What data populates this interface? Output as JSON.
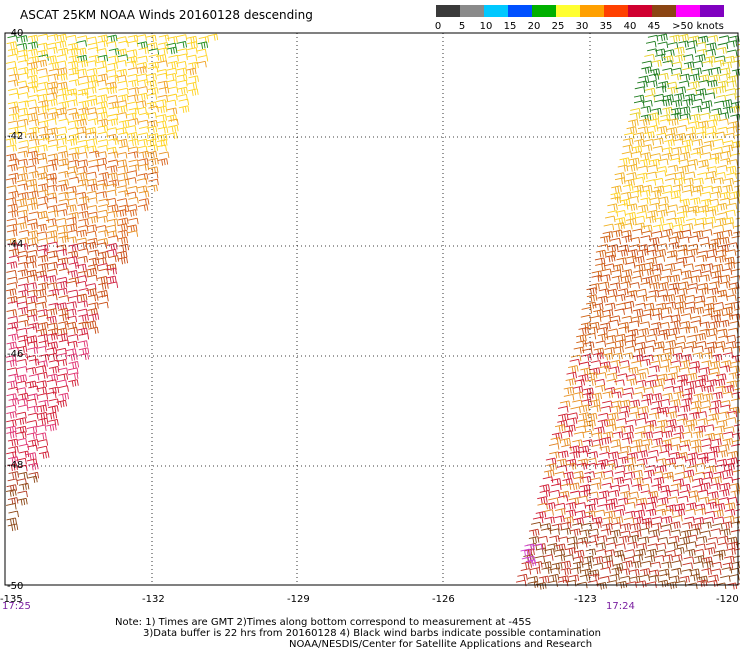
{
  "title": "ASCAT 25KM NOAA Winds 20160128 descending",
  "legend": {
    "labels": [
      "0",
      "5",
      "10",
      "15",
      "20",
      "25",
      "30",
      "35",
      "40",
      "45",
      ">50 knots"
    ],
    "colors": [
      "#3a3a3a",
      "#8a8a8a",
      "#00c8ff",
      "#0050ff",
      "#00b000",
      "#ffff30",
      "#ffa000",
      "#ff4000",
      "#d00030",
      "#8b4513",
      "#ff00ff",
      "#8000c0"
    ]
  },
  "axes": {
    "lat_labels": [
      "-40",
      "-42",
      "-44",
      "-46",
      "-48",
      "-50"
    ],
    "lon_labels": [
      "-135",
      "-132",
      "-129",
      "-126",
      "-123",
      "-120"
    ]
  },
  "swaths": {
    "left_time": "17:25",
    "right_time": "17:24"
  },
  "notes": {
    "line1": "Note: 1) Times are GMT 2)Times along bottom correspond to measurement at -45S",
    "line2": "3)Data buffer is 22 hrs from 20160128 4) Black wind barbs indicate possible contamination",
    "line3": "NOAA/NESDIS/Center for Satellite Applications and Research"
  }
}
